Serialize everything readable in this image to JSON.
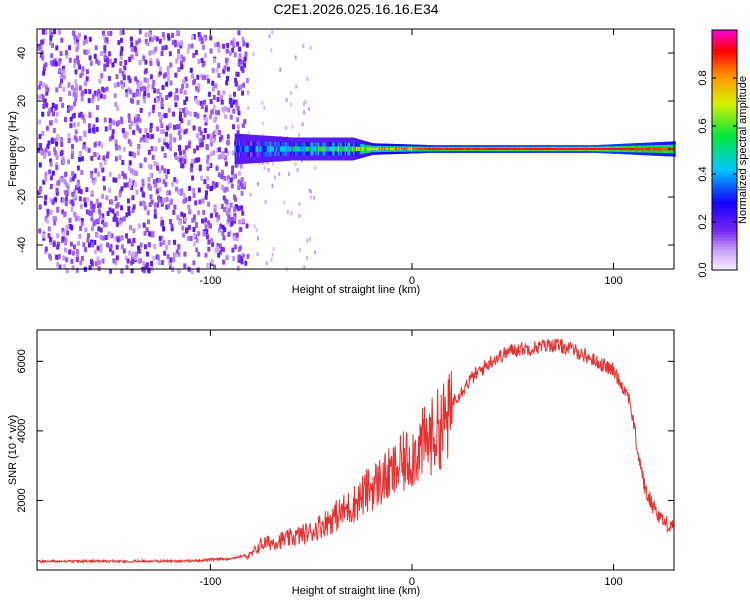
{
  "figure_title": "C2E1.2026.025.16.16.E34",
  "chart_data": [
    {
      "type": "heatmap",
      "title": "C2E1.2026.025.16.16.E34",
      "xlabel": "Height of straight line (km)",
      "ylabel": "Frequency (Hz)",
      "xlim": [
        -186,
        130
      ],
      "ylim": [
        -50,
        50
      ],
      "xticks": [
        -100,
        0,
        100
      ],
      "yticks": [
        -40,
        -20,
        0,
        20,
        40
      ],
      "colorbar": {
        "label": "Normalized spectral amplitude",
        "range": [
          0,
          1
        ],
        "ticks": [
          "0.0",
          "0.2",
          "0.4",
          "0.6",
          "0.8"
        ],
        "colormap": "rainbow (white/violet → blue → cyan → green → yellow → red → magenta)"
      },
      "noise_region_end_km": -82,
      "signal_start_km": -88,
      "signal_center_hz": 0,
      "signal_profile": [
        {
          "x": -88,
          "halfwidth_hz": 4,
          "amplitude": 0.3
        },
        {
          "x": -60,
          "halfwidth_hz": 3,
          "amplitude": 0.45
        },
        {
          "x": -30,
          "halfwidth_hz": 3,
          "amplitude": 0.55
        },
        {
          "x": -20,
          "halfwidth_hz": 1.5,
          "amplitude": 0.75
        },
        {
          "x": 10,
          "halfwidth_hz": 1,
          "amplitude": 0.9
        },
        {
          "x": 90,
          "halfwidth_hz": 1,
          "amplitude": 0.95
        },
        {
          "x": 130,
          "halfwidth_hz": 2,
          "amplitude": 0.85
        }
      ]
    },
    {
      "type": "line",
      "xlabel": "Height of straight line (km)",
      "ylabel": "SNR (10 * v/v)",
      "xlim": [
        -186,
        130
      ],
      "ylim": [
        0,
        6900
      ],
      "xticks": [
        -100,
        0,
        100
      ],
      "yticks": [
        2000,
        4000,
        6000
      ],
      "series": [
        {
          "name": "SNR",
          "color": "#e83030",
          "envelope": [
            {
              "x": -186,
              "y": 250
            },
            {
              "x": -150,
              "y": 250
            },
            {
              "x": -110,
              "y": 260
            },
            {
              "x": -90,
              "y": 330
            },
            {
              "x": -80,
              "y": 450
            },
            {
              "x": -75,
              "y": 800
            },
            {
              "x": -60,
              "y": 1000
            },
            {
              "x": -50,
              "y": 1200
            },
            {
              "x": -40,
              "y": 1600
            },
            {
              "x": -30,
              "y": 2000
            },
            {
              "x": -20,
              "y": 2600
            },
            {
              "x": -10,
              "y": 3000
            },
            {
              "x": 0,
              "y": 3600
            },
            {
              "x": 10,
              "y": 4200
            },
            {
              "x": 20,
              "y": 4900
            },
            {
              "x": 30,
              "y": 5600
            },
            {
              "x": 40,
              "y": 6100
            },
            {
              "x": 50,
              "y": 6400
            },
            {
              "x": 60,
              "y": 6450
            },
            {
              "x": 70,
              "y": 6550
            },
            {
              "x": 80,
              "y": 6400
            },
            {
              "x": 90,
              "y": 6100
            },
            {
              "x": 100,
              "y": 5800
            },
            {
              "x": 108,
              "y": 5000
            },
            {
              "x": 112,
              "y": 3500
            },
            {
              "x": 116,
              "y": 2300
            },
            {
              "x": 122,
              "y": 1700
            },
            {
              "x": 126,
              "y": 1400
            },
            {
              "x": 130,
              "y": 1400
            }
          ]
        }
      ]
    }
  ]
}
